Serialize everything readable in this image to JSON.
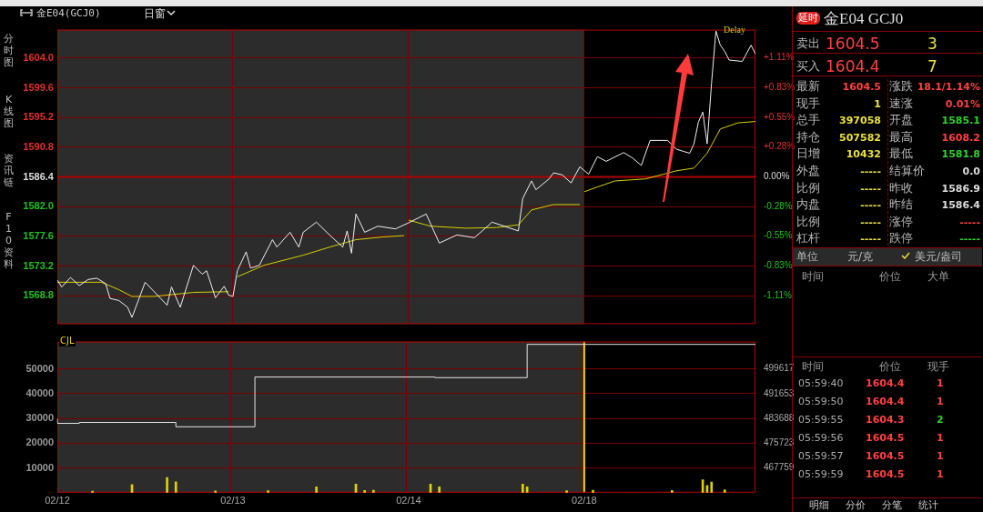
{
  "chart_data": [
    {
      "type": "line",
      "title": "金E04(GCJ0)",
      "annotations": [
        "日窗",
        "分时图",
        "K线图",
        "资讯链",
        "F10资料",
        "Delay"
      ],
      "categories": [
        "02/12",
        null,
        null,
        null,
        null,
        null,
        null,
        null,
        null,
        null,
        null,
        null,
        null,
        null,
        null,
        null,
        null,
        null,
        null,
        null,
        null,
        null,
        null,
        null,
        null,
        null,
        null,
        null,
        null,
        null,
        null,
        null,
        null,
        null,
        null,
        null,
        null,
        null,
        null,
        null,
        "02/13",
        null,
        null,
        null,
        null,
        null,
        null,
        null,
        null,
        null,
        null,
        null,
        null,
        null,
        null,
        null,
        null,
        null,
        null,
        null,
        null,
        null,
        null,
        null,
        null,
        null,
        null,
        null,
        null,
        null,
        null,
        null,
        null,
        null,
        null,
        null,
        null,
        null,
        null,
        null,
        "02/14",
        null,
        null,
        null,
        null,
        null,
        null,
        null,
        null,
        null,
        null,
        null,
        null,
        null,
        null,
        null,
        null,
        null,
        null,
        null,
        null,
        null,
        null,
        null,
        null,
        null,
        null,
        null,
        null,
        null,
        null,
        null,
        null,
        null,
        null,
        null,
        null,
        null,
        null,
        null,
        "02/18",
        null,
        null,
        null,
        null,
        null,
        null,
        null,
        null,
        null,
        null,
        null,
        null,
        null,
        null,
        null,
        null,
        null,
        null,
        null,
        null,
        null,
        null,
        null,
        null,
        null,
        null,
        null,
        null,
        null,
        null,
        null,
        null,
        null,
        null,
        null,
        null,
        null,
        null,
        null
      ],
      "ylim": [
        1564.6,
        1608.2
      ],
      "yticks": [
        {
          "value": 1568.8,
          "label": "1568.8"
        },
        {
          "value": 1573.2,
          "label": "1573.2"
        },
        {
          "value": 1577.6,
          "label": "1577.6"
        },
        {
          "value": 1582.0,
          "label": "1582.0"
        },
        {
          "value": 1586.4,
          "label": "1586.4"
        },
        {
          "value": 1590.8,
          "label": "1590.8"
        },
        {
          "value": 1595.2,
          "label": "1595.2"
        },
        {
          "value": 1599.6,
          "label": "1599.6"
        },
        {
          "value": 1604.0,
          "label": "1604.0"
        }
      ],
      "y2lim": [
        -1.374,
        1.374
      ],
      "y2ticks": [
        {
          "value": -1.11,
          "label": "-1.11%"
        },
        {
          "value": -0.83,
          "label": "-0.83%"
        },
        {
          "value": -0.55,
          "label": "-0.55%"
        },
        {
          "value": -0.28,
          "label": "-0.28%"
        },
        {
          "value": 0,
          "label": "0.00%"
        },
        {
          "value": 0.28,
          "label": "+0.28%"
        },
        {
          "value": 0.55,
          "label": "+0.55%"
        },
        {
          "value": 0.83,
          "label": "+0.83%"
        },
        {
          "value": 1.11,
          "label": "+1.11%"
        }
      ],
      "grid": true,
      "tick_labels": "y",
      "ref_lines": [
        {
          "axis": "y",
          "value": 1586.4,
          "color": "#b00000"
        }
      ],
      "bands": [
        {
          "axis": "x",
          "from": "02/12",
          "to": "02/18",
          "color": "#2c2c2c"
        }
      ],
      "series": [
        {
          "type": "line",
          "color": "#f0f0f0",
          "values": [
            1571.1,
            1570.1,
            null,
            1571.5,
            null,
            1570.3,
            null,
            1571.2,
            null,
            1571.4,
            null,
            1570.6,
            1568.4,
            null,
            1568.1,
            null,
            1567.1,
            1565.6,
            null,
            null,
            1570.8,
            null,
            null,
            null,
            null,
            1567.4,
            1570.1,
            null,
            1567.1,
            null,
            null,
            1573.3,
            null,
            1572.0,
            1572.5,
            null,
            1568.5,
            null,
            1570.2,
            1568.9,
            1568.7,
            1572.5,
            null,
            1575.3,
            1572.9,
            null,
            1573.3,
            null,
            null,
            1577.1,
            1576.0,
            null,
            null,
            1578.2,
            null,
            1576.0,
            1578.2,
            null,
            null,
            1579.7,
            null,
            null,
            1577.8,
            null,
            null,
            1576.0,
            1578.4,
            1575.1,
            1580.9,
            null,
            1578.2,
            null,
            null,
            1579.1,
            null,
            null,
            null,
            1578.7,
            null,
            null,
            1579.6,
            null,
            null,
            null,
            1580.9,
            null,
            null,
            1576.6,
            null,
            null,
            null,
            1577.8,
            null,
            null,
            null,
            1577.4,
            null,
            null,
            1579.1,
            1579.7,
            null,
            null,
            null,
            null,
            null,
            1578.4,
            1583.2,
            null,
            1585.8,
            1584.5,
            null,
            null,
            1586.1,
            1587.0,
            null,
            1586.7,
            null,
            1585.5,
            null,
            1587.9,
            null,
            1586.8,
            null,
            1589.4,
            null,
            1588.7,
            null,
            null,
            null,
            1590.0,
            null,
            1589.2,
            null,
            1588.1,
            null,
            1591.8,
            null,
            null,
            null,
            1591.8,
            null,
            1590.5,
            null,
            null,
            1589.9,
            1591.3,
            1594.5,
            1596.0,
            1591.3,
            1600.3,
            1608.0,
            1605.9,
            1605.0,
            1603.7,
            null,
            null,
            1603.5,
            null,
            1605.9,
            1604.6
          ]
        },
        {
          "type": "line",
          "color": "#d8d000",
          "values": [
            1570.8,
            null,
            null,
            null,
            null,
            null,
            null,
            null,
            null,
            null,
            1570.8,
            null,
            null,
            null,
            1569.7,
            null,
            null,
            1568.7,
            null,
            null,
            null,
            null,
            1568.7,
            null,
            null,
            null,
            null,
            null,
            null,
            null,
            null,
            1569.3,
            null,
            null,
            null,
            null,
            null,
            null,
            null,
            1569.4,
            null,
            null,
            null,
            null,
            null,
            null,
            null,
            null,
            null,
            null,
            null,
            null,
            null,
            null,
            null,
            null,
            null,
            null,
            null,
            null,
            null,
            null,
            null,
            null,
            null,
            null,
            null,
            null,
            null,
            null,
            null,
            null,
            null,
            null,
            null,
            null,
            null,
            null,
            null,
            null,
            null,
            null,
            null,
            null,
            null,
            null,
            null,
            null,
            null,
            null,
            null,
            null,
            null,
            null,
            null,
            null,
            null,
            null,
            null,
            null,
            null,
            null,
            null,
            null,
            null,
            null,
            null,
            null,
            null,
            null,
            null,
            null,
            null,
            null,
            null,
            null,
            null,
            null,
            null,
            null,
            null,
            null,
            null,
            null,
            null,
            null,
            null,
            null,
            null,
            null,
            null,
            null,
            null,
            null,
            null,
            null,
            null,
            null,
            null,
            null,
            null,
            null,
            null,
            null,
            null,
            null,
            null,
            null,
            null,
            null,
            null,
            null,
            null,
            null,
            null,
            null,
            null,
            null,
            null,
            null
          ]
        },
        {
          "type": "line",
          "color": "#d8d000",
          "values": [
            null,
            null,
            null,
            null,
            null,
            null,
            null,
            null,
            null,
            null,
            null,
            null,
            null,
            null,
            null,
            null,
            null,
            null,
            null,
            null,
            null,
            null,
            null,
            null,
            null,
            null,
            null,
            null,
            null,
            null,
            null,
            null,
            null,
            null,
            null,
            null,
            null,
            null,
            null,
            null,
            null,
            1571.6,
            null,
            null,
            null,
            null,
            null,
            1573.3,
            null,
            null,
            null,
            null,
            null,
            null,
            null,
            null,
            1574.8,
            null,
            null,
            null,
            null,
            null,
            1576.0,
            null,
            null,
            null,
            null,
            null,
            1577.1,
            null,
            null,
            null,
            null,
            null,
            1577.5,
            null,
            null,
            null,
            null,
            1577.7,
            null,
            null,
            null,
            null,
            null,
            null,
            null,
            null,
            null,
            null,
            null,
            null,
            null,
            null,
            null,
            null,
            null,
            null,
            null,
            null,
            null,
            null,
            null,
            null,
            null,
            null,
            null,
            null,
            null,
            null,
            null,
            null,
            null,
            null,
            null,
            null,
            null,
            null,
            null,
            null,
            null,
            null,
            null,
            null,
            null,
            null,
            null,
            null,
            null,
            null,
            null,
            null,
            null,
            null,
            null,
            null,
            null,
            null,
            null,
            null,
            null,
            null,
            null,
            null,
            null,
            null,
            null,
            null,
            null,
            null,
            null,
            null,
            null,
            null,
            null,
            null,
            null,
            null,
            null,
            null
          ]
        },
        {
          "type": "line",
          "color": "#d8d000",
          "values": [
            null,
            null,
            null,
            null,
            null,
            null,
            null,
            null,
            null,
            null,
            null,
            null,
            null,
            null,
            null,
            null,
            null,
            null,
            null,
            null,
            null,
            null,
            null,
            null,
            null,
            null,
            null,
            null,
            null,
            null,
            null,
            null,
            null,
            null,
            null,
            null,
            null,
            null,
            null,
            null,
            null,
            null,
            null,
            null,
            null,
            null,
            null,
            null,
            null,
            null,
            null,
            null,
            null,
            null,
            null,
            null,
            null,
            null,
            null,
            null,
            null,
            null,
            null,
            null,
            null,
            null,
            null,
            null,
            null,
            null,
            null,
            null,
            null,
            null,
            null,
            null,
            null,
            null,
            null,
            null,
            1580.0,
            null,
            null,
            null,
            null,
            1579.1,
            null,
            null,
            null,
            null,
            null,
            null,
            null,
            1578.8,
            null,
            null,
            null,
            null,
            null,
            null,
            1578.9,
            null,
            null,
            null,
            null,
            1579.3,
            null,
            null,
            1581.5,
            null,
            null,
            null,
            null,
            1582.3,
            null,
            null,
            null,
            null,
            null,
            1582.3,
            null,
            null,
            null,
            null,
            null,
            null,
            null,
            null,
            null,
            null,
            null,
            null,
            null,
            null,
            null,
            null,
            null,
            null,
            null,
            null,
            null,
            null,
            null,
            null,
            null,
            null,
            null,
            null,
            null,
            null,
            null,
            null,
            null,
            null,
            null,
            null,
            null,
            null,
            null,
            null
          ]
        },
        {
          "type": "line",
          "color": "#d8d000",
          "values": [
            null,
            null,
            null,
            null,
            null,
            null,
            null,
            null,
            null,
            null,
            null,
            null,
            null,
            null,
            null,
            null,
            null,
            null,
            null,
            null,
            null,
            null,
            null,
            null,
            null,
            null,
            null,
            null,
            null,
            null,
            null,
            null,
            null,
            null,
            null,
            null,
            null,
            null,
            null,
            null,
            null,
            null,
            null,
            null,
            null,
            null,
            null,
            null,
            null,
            null,
            null,
            null,
            null,
            null,
            null,
            null,
            null,
            null,
            null,
            null,
            null,
            null,
            null,
            null,
            null,
            null,
            null,
            null,
            null,
            null,
            null,
            null,
            null,
            null,
            null,
            null,
            null,
            null,
            null,
            null,
            null,
            null,
            null,
            null,
            null,
            null,
            null,
            null,
            null,
            null,
            null,
            null,
            null,
            null,
            null,
            null,
            null,
            null,
            null,
            null,
            null,
            null,
            null,
            null,
            null,
            null,
            null,
            null,
            null,
            null,
            null,
            null,
            null,
            null,
            null,
            null,
            null,
            null,
            null,
            null,
            1584.2,
            null,
            null,
            1584.9,
            null,
            null,
            null,
            1585.8,
            null,
            null,
            null,
            null,
            null,
            null,
            1586.1,
            null,
            null,
            null,
            null,
            null,
            null,
            1587.3,
            null,
            null,
            null,
            1587.7,
            null,
            null,
            1589.9,
            null,
            null,
            1593.5,
            null,
            null,
            null,
            1594.4,
            null,
            null,
            null,
            1594.6
          ]
        }
      ]
    },
    {
      "type": "line",
      "annotations": [
        "CJL"
      ],
      "categories": [
        "02/12",
        null,
        null,
        null,
        null,
        null,
        null,
        null,
        null,
        null,
        null,
        null,
        null,
        null,
        null,
        null,
        null,
        null,
        null,
        null,
        null,
        null,
        null,
        null,
        null,
        null,
        null,
        null,
        null,
        null,
        null,
        null,
        null,
        null,
        null,
        null,
        null,
        null,
        null,
        null,
        "02/13",
        null,
        null,
        null,
        null,
        null,
        null,
        null,
        null,
        null,
        null,
        null,
        null,
        null,
        null,
        null,
        null,
        null,
        null,
        null,
        null,
        null,
        null,
        null,
        null,
        null,
        null,
        null,
        null,
        null,
        null,
        null,
        null,
        null,
        null,
        null,
        null,
        null,
        null,
        null,
        "02/14",
        null,
        null,
        null,
        null,
        null,
        null,
        null,
        null,
        null,
        null,
        null,
        null,
        null,
        null,
        null,
        null,
        null,
        null,
        null,
        null,
        null,
        null,
        null,
        null,
        null,
        null,
        null,
        null,
        null,
        null,
        null,
        null,
        null,
        null,
        null,
        null,
        null,
        null,
        null,
        "02/18",
        null,
        null,
        null,
        null,
        null,
        null,
        null,
        null,
        null,
        null,
        null,
        null,
        null,
        null,
        null,
        null,
        null,
        null,
        null,
        null,
        null,
        null,
        null,
        null,
        null,
        null,
        null,
        null,
        null,
        null,
        null,
        null,
        null,
        null,
        null,
        null,
        null,
        null,
        null
      ],
      "ylim": [
        0,
        61027
      ],
      "yticks": [
        10000,
        20000,
        30000,
        40000,
        50000
      ],
      "y2lim": [
        459795,
        508400
      ],
      "y2ticks": [
        467759,
        475723,
        483688,
        491653,
        499617
      ],
      "grid": true,
      "ref_lines": [
        {
          "axis": "x",
          "value": "02/18",
          "color": "#e8d800"
        }
      ],
      "bands": [
        {
          "axis": "x",
          "from": "02/12",
          "to": "02/18",
          "color": "#2c2c2c"
        }
      ],
      "series": [
        {
          "type": "step",
          "axis": "y2",
          "color": "#e6e6e6",
          "values": [
            483600,
            null,
            null,
            null,
            null,
            482100,
            null,
            null,
            null,
            null,
            null,
            null,
            null,
            null,
            null,
            null,
            null,
            null,
            null,
            null,
            null,
            null,
            null,
            null,
            null,
            null,
            null,
            482400,
            null,
            null,
            null,
            null,
            null,
            null,
            null,
            null,
            null,
            null,
            null,
            null,
            null,
            null,
            null,
            null,
            null,
            481000,
            null,
            null,
            null,
            null,
            null,
            null,
            null,
            null,
            null,
            null,
            null,
            null,
            null,
            null,
            null,
            null,
            null,
            null,
            null,
            null,
            null,
            null,
            null,
            null,
            null,
            null,
            null,
            null,
            null,
            null,
            null,
            null,
            null,
            null,
            null,
            null,
            null,
            null,
            null,
            null,
            497000,
            null,
            null,
            null,
            null,
            null,
            null,
            null,
            null,
            null,
            null,
            null,
            null,
            null,
            null,
            null,
            null,
            null,
            null,
            null,
            null,
            496800,
            null,
            null,
            null,
            null,
            null,
            null,
            null,
            null,
            null,
            null,
            null,
            null,
            507500,
            null,
            null,
            null,
            null,
            null,
            null,
            null,
            null,
            null,
            null,
            null,
            null,
            null,
            null,
            null,
            null,
            null,
            null,
            null,
            null,
            null,
            null,
            null,
            null,
            null,
            null,
            null,
            null,
            null,
            null,
            null,
            null,
            null,
            null,
            null,
            null,
            null,
            null,
            507500
          ]
        },
        {
          "type": "bar",
          "color": "#e0d000",
          "values": [
            null,
            null,
            null,
            null,
            null,
            null,
            null,
            null,
            600,
            null,
            null,
            null,
            null,
            null,
            null,
            null,
            null,
            3300,
            null,
            null,
            null,
            null,
            null,
            null,
            null,
            6100,
            null,
            4400,
            null,
            null,
            null,
            null,
            null,
            null,
            null,
            null,
            700,
            null,
            null,
            null,
            null,
            null,
            null,
            null,
            null,
            null,
            null,
            null,
            800,
            null,
            null,
            null,
            null,
            null,
            null,
            null,
            null,
            null,
            null,
            2400,
            null,
            null,
            null,
            null,
            null,
            null,
            null,
            null,
            3500,
            null,
            900,
            null,
            1000,
            null,
            null,
            null,
            null,
            null,
            null,
            null,
            null,
            null,
            null,
            null,
            null,
            3500,
            null,
            2400,
            null,
            null,
            null,
            null,
            null,
            null,
            null,
            null,
            null,
            null,
            null,
            null,
            null,
            null,
            null,
            null,
            null,
            null,
            3500,
            2400,
            null,
            null,
            null,
            null,
            null,
            null,
            null,
            null,
            800,
            null,
            null,
            null,
            null,
            null,
            1000,
            null,
            null,
            null,
            null,
            null,
            null,
            null,
            null,
            null,
            null,
            null,
            null,
            null,
            null,
            null,
            null,
            null,
            900,
            null,
            null,
            null,
            null,
            null,
            null,
            5200,
            2900,
            4300,
            null,
            null,
            1200,
            null,
            null,
            null,
            null,
            null,
            null,
            null
          ]
        }
      ]
    },
    {
      "type": "other",
      "annotations": [
        "延时",
        "金E04  GCJ0",
        "卖出",
        "1604.5",
        "3",
        "买入",
        "1604.4",
        "7",
        "最新",
        "1604.5",
        "涨跌",
        "18.1/1.14%",
        "现手",
        "1",
        "速涨",
        "0.01%",
        "总手",
        "397058",
        "开盘",
        "1585.1",
        "持仓",
        "507582",
        "最高",
        "1608.2",
        "日增",
        "10432",
        "最低",
        "1581.8",
        "外盘",
        "-----",
        "结算价",
        "0.0",
        "比例",
        "-----",
        "昨收",
        "1586.9",
        "内盘",
        "-----",
        "昨结",
        "1586.4",
        "比例",
        "-----",
        "涨停",
        "-----",
        "杠杆",
        "-----",
        "跌停",
        "-----",
        "单位",
        "元/克",
        "美元/盎司",
        "时间",
        "价位",
        "大单",
        "时间",
        "价位",
        "现手",
        "05:59:40",
        "1604.4",
        "1",
        "05:59:50",
        "1604.4",
        "1",
        "05:59:55",
        "1604.3",
        "2",
        "05:59:56",
        "1604.5",
        "1",
        "05:59:57",
        "1604.5",
        "1",
        "05:59:59",
        "1604.5",
        "1",
        "明细",
        "分价",
        "分笔",
        "统计"
      ]
    }
  ]
}
